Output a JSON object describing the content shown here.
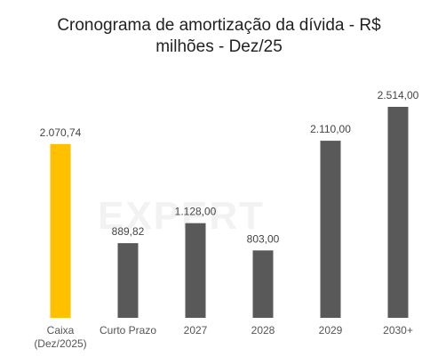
{
  "chart_data": {
    "type": "bar",
    "title_line1": "Cronograma de amortização da dívida - R$",
    "title_line2": "milhões - Dez/25",
    "categories": [
      {
        "line1": "Caixa",
        "line2": "(Dez/2025)"
      },
      {
        "line1": "Curto Prazo",
        "line2": ""
      },
      {
        "line1": "2027",
        "line2": ""
      },
      {
        "line1": "2028",
        "line2": ""
      },
      {
        "line1": "2029",
        "line2": ""
      },
      {
        "line1": "2030+",
        "line2": ""
      }
    ],
    "values": [
      2070.74,
      889.82,
      1128.0,
      803.0,
      2110.0,
      2514.0
    ],
    "value_labels": [
      "2.070,74",
      "889,82",
      "1.128,00",
      "803,00",
      "2.110,00",
      "2.514,00"
    ],
    "colors": [
      "#ffc000",
      "#595959",
      "#595959",
      "#595959",
      "#595959",
      "#595959"
    ],
    "ylim": [
      0,
      2514
    ],
    "grid": false,
    "legend": "none",
    "watermark": "EXPERT"
  }
}
